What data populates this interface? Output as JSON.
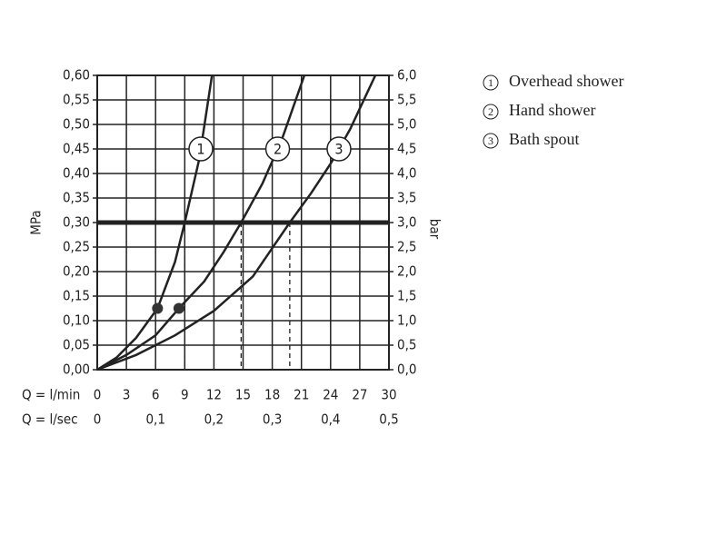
{
  "chart_data": {
    "type": "line",
    "xlabel": "Q = l/min",
    "x2label": "Q = l/sec",
    "ylabel": "MPa",
    "y2label": "bar",
    "xlim": [
      0,
      30
    ],
    "xticks": [
      0,
      3,
      6,
      9,
      12,
      15,
      18,
      21,
      24,
      27,
      30
    ],
    "x2lim": [
      0,
      0.5
    ],
    "x2ticks": [
      0,
      {
        "value": 0.1,
        "label": "0,1"
      },
      {
        "value": 0.2,
        "label": "0,2"
      },
      {
        "value": 0.3,
        "label": "0,3"
      },
      {
        "value": 0.4,
        "label": "0,4"
      },
      {
        "value": 0.5,
        "label": "0,5"
      }
    ],
    "ylim": [
      0,
      0.6
    ],
    "yticks": [
      {
        "value": 0,
        "label": "0,00"
      },
      {
        "value": 0.05,
        "label": "0,05"
      },
      {
        "value": 0.1,
        "label": "0,10"
      },
      {
        "value": 0.15,
        "label": "0,15"
      },
      {
        "value": 0.2,
        "label": "0,20"
      },
      {
        "value": 0.25,
        "label": "0,25"
      },
      {
        "value": 0.3,
        "label": "0,30"
      },
      {
        "value": 0.35,
        "label": "0,35"
      },
      {
        "value": 0.4,
        "label": "0,40"
      },
      {
        "value": 0.45,
        "label": "0,45"
      },
      {
        "value": 0.5,
        "label": "0,50"
      },
      {
        "value": 0.55,
        "label": "0,55"
      },
      {
        "value": 0.6,
        "label": "0,60"
      }
    ],
    "y2lim": [
      0,
      6
    ],
    "y2ticks": [
      {
        "value": 0,
        "label": "0,0"
      },
      {
        "value": 0.5,
        "label": "0,5"
      },
      {
        "value": 1,
        "label": "1,0"
      },
      {
        "value": 1.5,
        "label": "1,5"
      },
      {
        "value": 2,
        "label": "2,0"
      },
      {
        "value": 2.5,
        "label": "2,5"
      },
      {
        "value": 3,
        "label": "3,0"
      },
      {
        "value": 3.5,
        "label": "3,5"
      },
      {
        "value": 4,
        "label": "4,0"
      },
      {
        "value": 4.5,
        "label": "4,5"
      },
      {
        "value": 5,
        "label": "5,0"
      },
      {
        "value": 5.5,
        "label": "5,5"
      },
      {
        "value": 6,
        "label": "6,0"
      }
    ],
    "grid": true,
    "color": "#222",
    "series": [
      {
        "name": "Overhead shower",
        "label": "1",
        "x": [
          0,
          2,
          4,
          6.2,
          8,
          9,
          10.5,
          11.8
        ],
        "values": [
          0,
          0.025,
          0.065,
          0.125,
          0.22,
          0.3,
          0.43,
          0.6
        ]
      },
      {
        "name": "Hand shower",
        "label": "2",
        "x": [
          0,
          3,
          6,
          8.4,
          11,
          13,
          14.8,
          17,
          19,
          21.3
        ],
        "values": [
          0,
          0.03,
          0.07,
          0.125,
          0.18,
          0.24,
          0.3,
          0.38,
          0.47,
          0.6
        ]
      },
      {
        "name": "Bath spout",
        "label": "3",
        "x": [
          0,
          4,
          8,
          12,
          16,
          19.8,
          22,
          24,
          26,
          28.6
        ],
        "values": [
          0,
          0.03,
          0.07,
          0.12,
          0.19,
          0.3,
          0.36,
          0.42,
          0.49,
          0.6
        ]
      }
    ],
    "markers": {
      "x": [
        6.2,
        8.4
      ],
      "values": [
        0.125,
        0.125
      ]
    },
    "reference_line": 0.3,
    "drop_lines": {
      "x": [
        9,
        14.8,
        19.8
      ],
      "values": [
        0.3,
        0.3,
        0.3
      ]
    }
  }
}
